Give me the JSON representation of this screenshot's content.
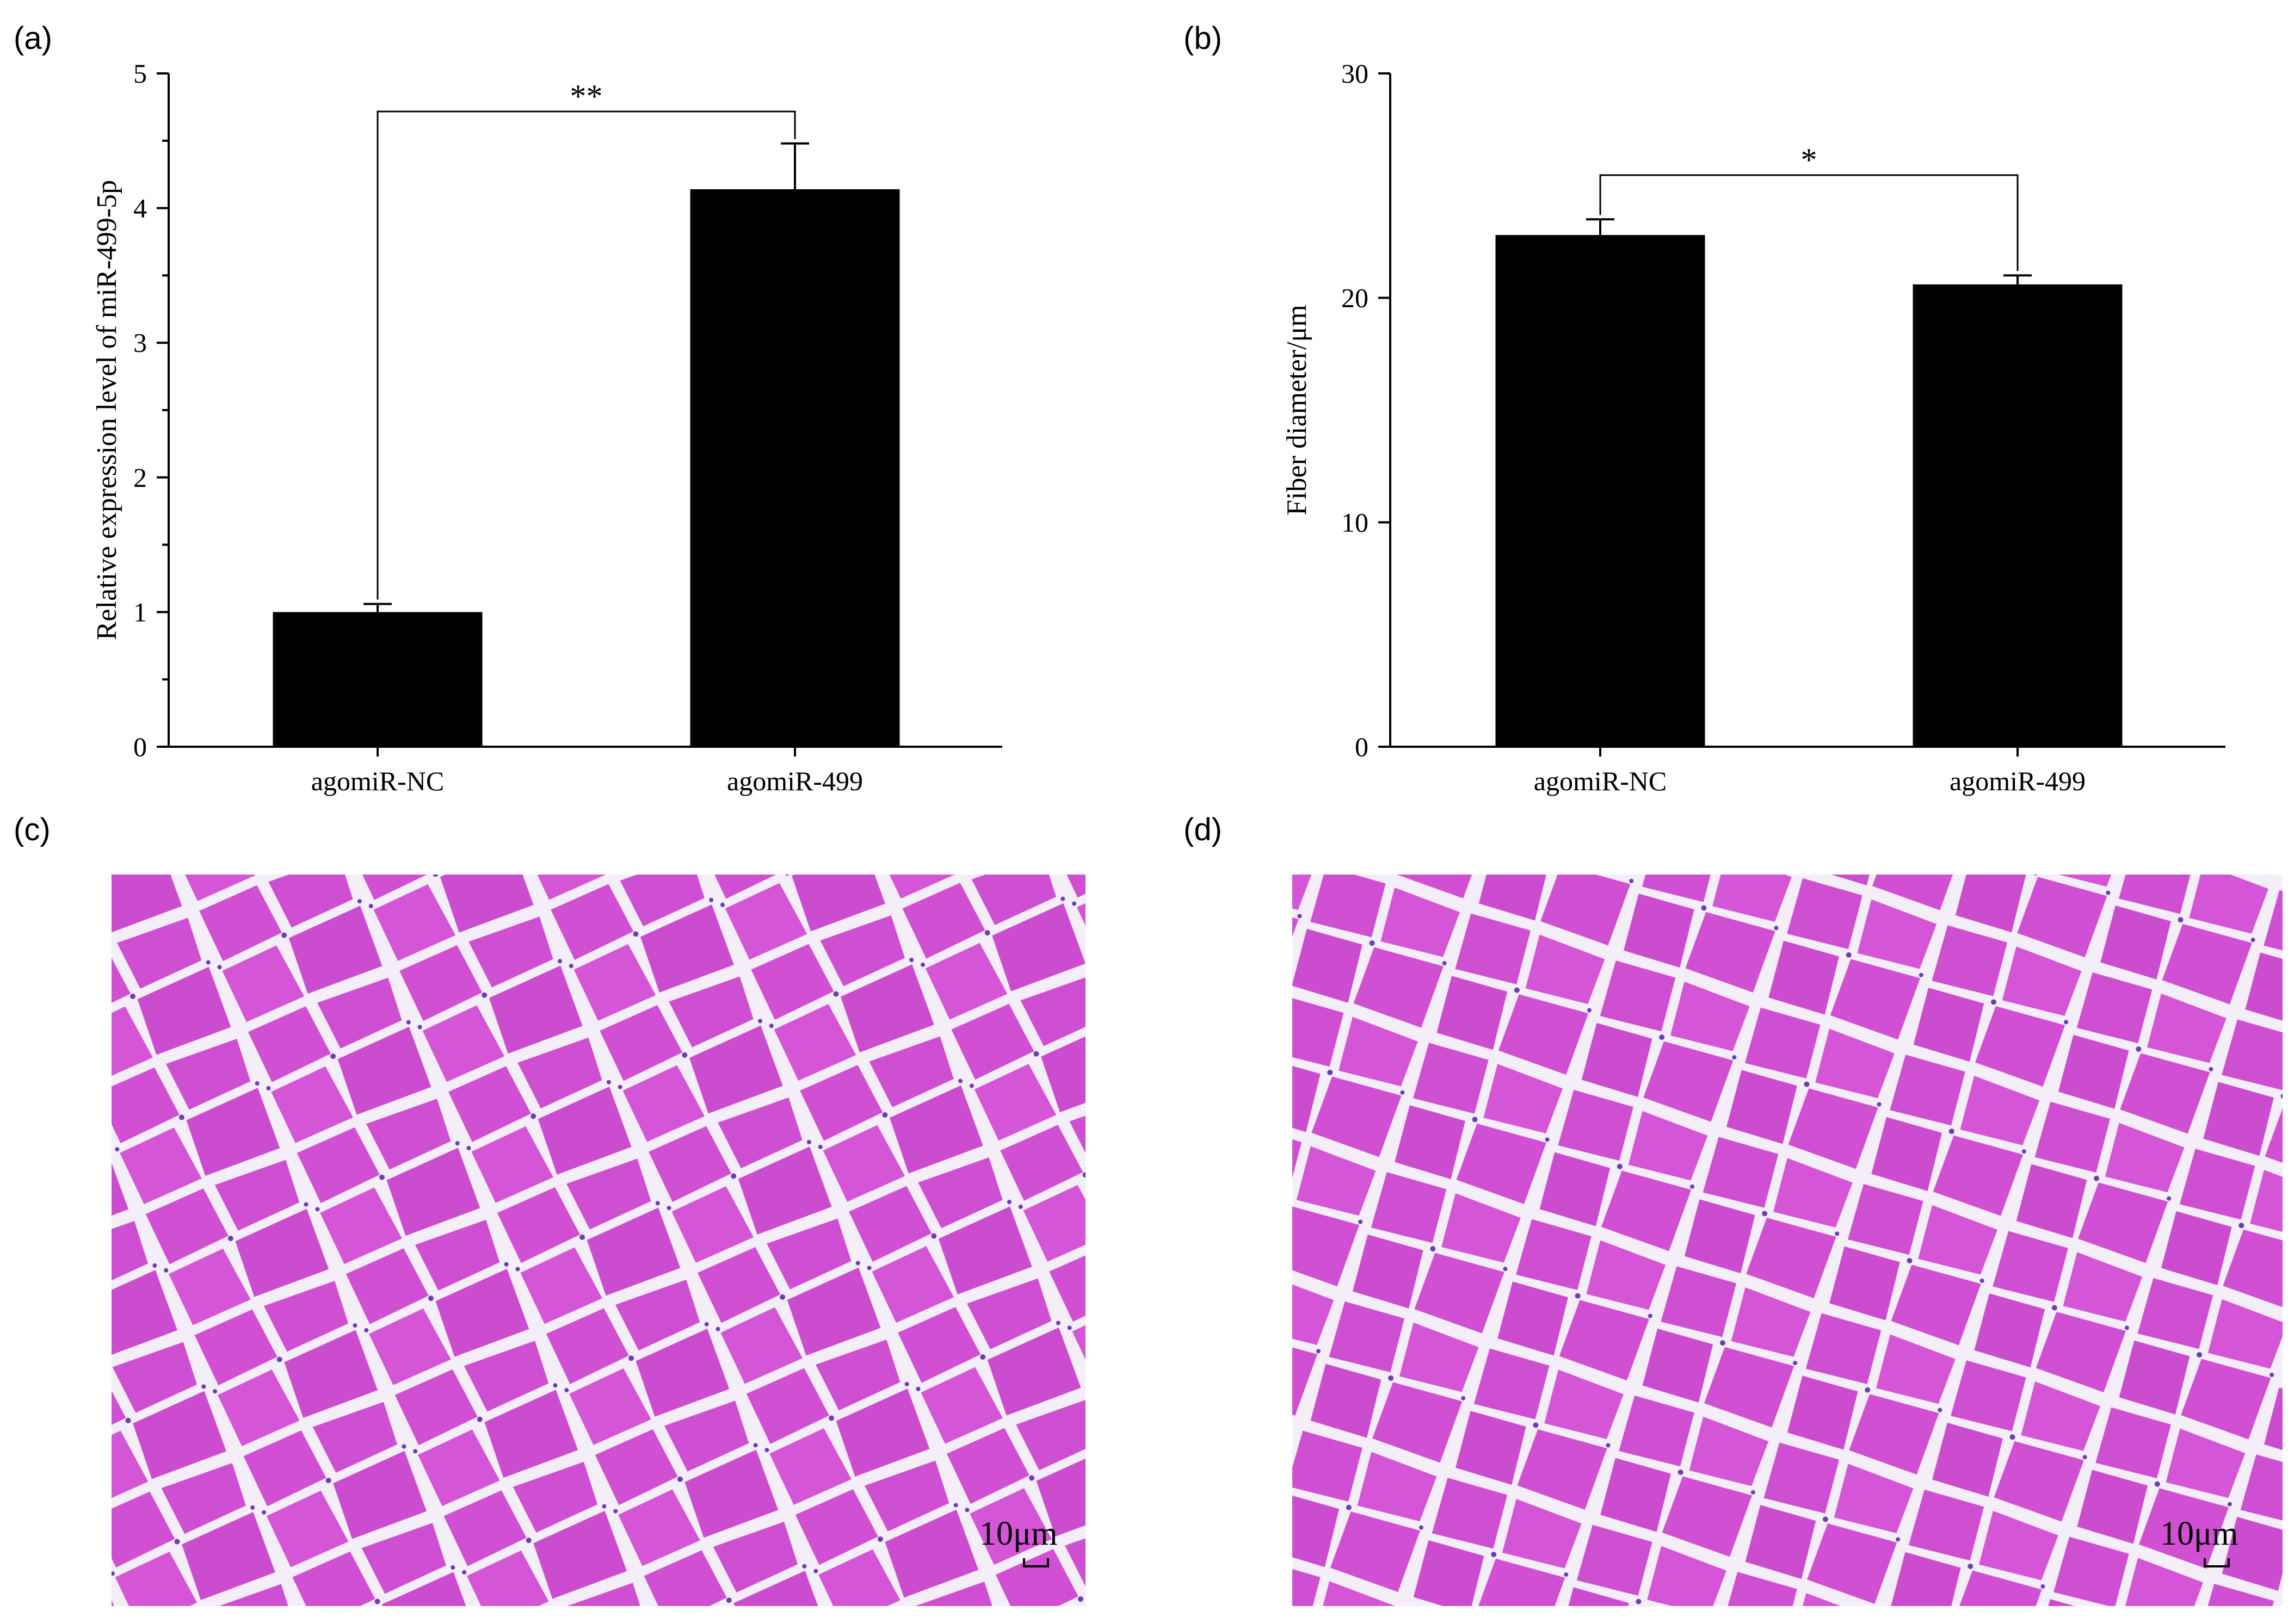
{
  "panels": {
    "a": "(a)",
    "b": "(b)",
    "c": "(c)",
    "d": "(d)"
  },
  "chart_data": [
    {
      "type": "bar",
      "categories": [
        "agomiR-NC",
        "agomiR-499"
      ],
      "values": [
        1.0,
        4.14
      ],
      "errors": [
        0.06,
        0.34
      ],
      "ylabel": "Relative expression level of miR-499-5p",
      "xlabel": "",
      "ylim": [
        0,
        5
      ],
      "yticks": [
        "0",
        "1",
        "2",
        "3",
        "4",
        "5"
      ],
      "significance": "**",
      "bar_color": "#000000"
    },
    {
      "type": "bar",
      "categories": [
        "agomiR-NC",
        "agomiR-499"
      ],
      "values": [
        22.8,
        20.6
      ],
      "errors": [
        0.7,
        0.4
      ],
      "ylabel": "Fiber diameter/μm",
      "xlabel": "",
      "ylim": [
        0,
        30
      ],
      "yticks": [
        "0",
        "10",
        "20",
        "30"
      ],
      "significance": "*",
      "bar_color": "#000000"
    }
  ],
  "micrographs": [
    {
      "scale_label": "10μm",
      "stain_color": "#d04fd3",
      "gap_color": "#f4eef8"
    },
    {
      "scale_label": "10μm",
      "stain_color": "#d04fd3",
      "gap_color": "#f4eef8"
    }
  ]
}
